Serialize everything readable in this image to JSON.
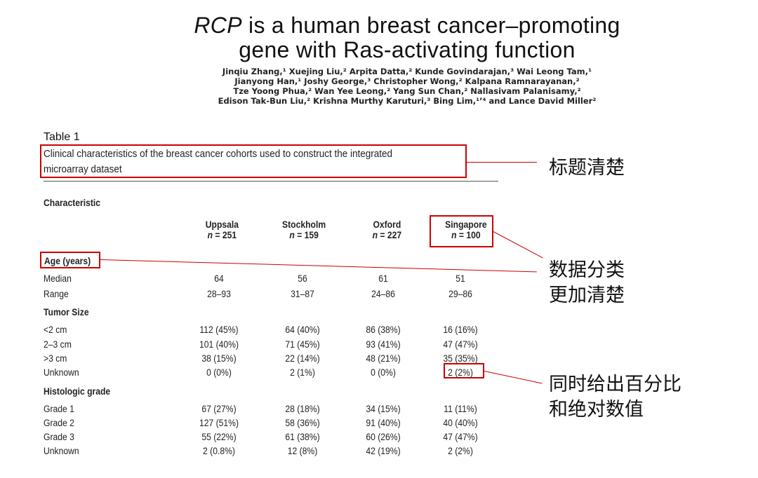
{
  "paper": {
    "title_gene": "RCP",
    "title_line1_rest": " is a human breast cancer–promoting",
    "title_line2": "gene with Ras-activating function",
    "authors": [
      "Jinqiu Zhang,¹ Xuejing Liu,² Arpita Datta,² Kunde Govindarajan,³ Wai Leong Tam,¹",
      "Jianyong Han,¹ Joshy George,³ Christopher Wong,² Kalpana Ramnarayanan,²",
      "Tze Yoong Phua,² Wan Yee Leong,² Yang Sun Chan,² Nallasivam Palanisamy,²",
      "Edison Tak-Bun Liu,² Krishna Murthy Karuturi,³ Bing Lim,¹ʼ⁴ and Lance David Miller²"
    ]
  },
  "table": {
    "label": "Table 1",
    "caption_line1": "Clinical characteristics of the breast cancer cohorts used to construct the integrated",
    "caption_line2": "microarray dataset",
    "characteristic_header": "Characteristic",
    "n_prefix": "n",
    "cohorts": [
      {
        "name": "Uppsala",
        "n": "= 251"
      },
      {
        "name": "Stockholm",
        "n": "= 159"
      },
      {
        "name": "Oxford",
        "n": "= 227"
      },
      {
        "name": "Singapore",
        "n": "= 100"
      }
    ],
    "sections": [
      {
        "heading": "Age (years)",
        "rows": [
          {
            "label": "Median",
            "values": [
              "64",
              "56",
              "61",
              "51"
            ]
          },
          {
            "label": "Range",
            "values": [
              "28–93",
              "31–87",
              "24–86",
              "29–86"
            ]
          }
        ]
      },
      {
        "heading": "Tumor Size",
        "rows": [
          {
            "label": "<2 cm",
            "values": [
              "112 (45%)",
              "64 (40%)",
              "86 (38%)",
              "16 (16%)"
            ]
          },
          {
            "label": "2–3 cm",
            "values": [
              "101 (40%)",
              "71 (45%)",
              "93 (41%)",
              "47 (47%)"
            ]
          },
          {
            "label": ">3 cm",
            "values": [
              "38 (15%)",
              "22 (14%)",
              "48 (21%)",
              "35 (35%)"
            ]
          },
          {
            "label": "Unknown",
            "values": [
              "0 (0%)",
              "2 (1%)",
              "0 (0%)",
              "2 (2%)"
            ]
          }
        ]
      },
      {
        "heading": "Histologic grade",
        "rows": [
          {
            "label": "Grade 1",
            "values": [
              "67 (27%)",
              "28 (18%)",
              "34 (15%)",
              "11 (11%)"
            ]
          },
          {
            "label": "Grade 2",
            "values": [
              "127 (51%)",
              "58 (36%)",
              "91 (40%)",
              "40 (40%)"
            ]
          },
          {
            "label": "Grade 3",
            "values": [
              "55 (22%)",
              "61 (38%)",
              "60 (26%)",
              "47 (47%)"
            ]
          },
          {
            "label": "Unknown",
            "values": [
              "2 (0.8%)",
              "12 (8%)",
              "42 (19%)",
              "2 (2%)"
            ]
          }
        ]
      }
    ]
  },
  "annotations": {
    "title_clear": "标题清楚",
    "classification_line1": "数据分类",
    "classification_line2": "更加清楚",
    "percent_line1": "同时给出百分比",
    "percent_line2": "和绝对数值",
    "highlight_color": "#cc0000"
  }
}
